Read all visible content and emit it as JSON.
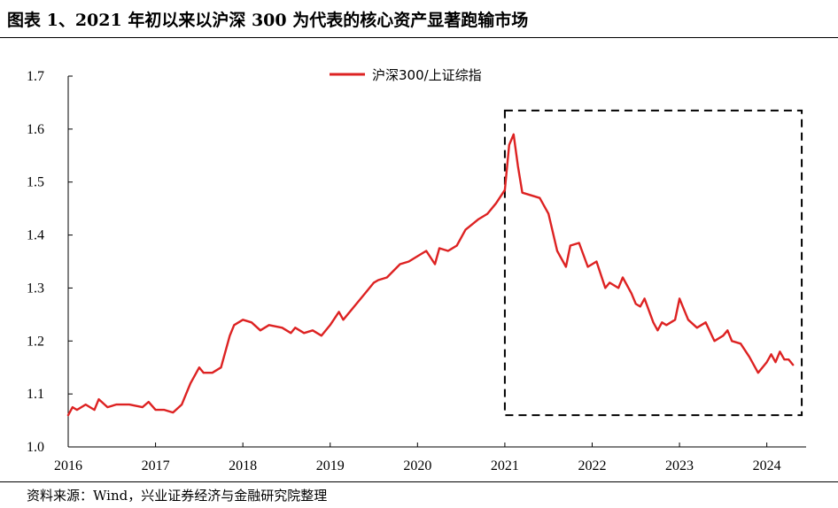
{
  "header": {
    "title": "图表 1、2021 年初以来以沪深 300 为代表的核心资产显著跑输市场"
  },
  "footer": {
    "source": "资料来源：Wind，兴业证券经济与金融研究院整理"
  },
  "colors": {
    "series": "#dd2222",
    "axis": "#000000",
    "highlight_box": "#000000"
  },
  "chart_data": {
    "type": "line",
    "title": "",
    "xlabel": "",
    "ylabel": "",
    "xlim": [
      2016,
      2024.45
    ],
    "ylim": [
      1.0,
      1.7
    ],
    "yticks": [
      "1.0",
      "1.1",
      "1.2",
      "1.3",
      "1.4",
      "1.5",
      "1.6",
      "1.7"
    ],
    "xticks": [
      "2016",
      "2017",
      "2018",
      "2019",
      "2020",
      "2021",
      "2022",
      "2023",
      "2024"
    ],
    "grid": false,
    "legend": {
      "placement": "top-center",
      "entries": [
        "沪深300/上证综指"
      ]
    },
    "highlight_box": {
      "x_range": [
        2021.0,
        2024.4
      ],
      "y_range": [
        1.06,
        1.635
      ],
      "style": "dashed"
    },
    "series": [
      {
        "name": "沪深300/上证综指",
        "x": [
          2016.0,
          2016.05,
          2016.1,
          2016.2,
          2016.3,
          2016.35,
          2016.45,
          2016.55,
          2016.7,
          2016.85,
          2016.92,
          2017.0,
          2017.1,
          2017.2,
          2017.3,
          2017.35,
          2017.4,
          2017.5,
          2017.55,
          2017.65,
          2017.75,
          2017.85,
          2017.9,
          2018.0,
          2018.1,
          2018.2,
          2018.3,
          2018.45,
          2018.55,
          2018.6,
          2018.7,
          2018.8,
          2018.9,
          2019.0,
          2019.1,
          2019.15,
          2019.3,
          2019.4,
          2019.5,
          2019.55,
          2019.65,
          2019.8,
          2019.9,
          2020.0,
          2020.1,
          2020.2,
          2020.25,
          2020.35,
          2020.45,
          2020.55,
          2020.7,
          2020.8,
          2020.9,
          2021.0,
          2021.05,
          2021.1,
          2021.15,
          2021.2,
          2021.3,
          2021.4,
          2021.5,
          2021.6,
          2021.7,
          2021.75,
          2021.85,
          2021.95,
          2022.05,
          2022.15,
          2022.2,
          2022.3,
          2022.35,
          2022.45,
          2022.5,
          2022.55,
          2022.6,
          2022.7,
          2022.75,
          2022.8,
          2022.85,
          2022.95,
          2023.0,
          2023.05,
          2023.1,
          2023.2,
          2023.3,
          2023.4,
          2023.5,
          2023.55,
          2023.6,
          2023.7,
          2023.8,
          2023.9,
          2023.95,
          2024.0,
          2024.05,
          2024.1,
          2024.15,
          2024.2,
          2024.25,
          2024.3
        ],
        "values": [
          1.06,
          1.075,
          1.07,
          1.08,
          1.07,
          1.09,
          1.075,
          1.08,
          1.08,
          1.075,
          1.085,
          1.07,
          1.07,
          1.065,
          1.08,
          1.1,
          1.12,
          1.15,
          1.14,
          1.14,
          1.15,
          1.21,
          1.23,
          1.24,
          1.235,
          1.22,
          1.23,
          1.225,
          1.215,
          1.225,
          1.215,
          1.22,
          1.21,
          1.23,
          1.255,
          1.24,
          1.27,
          1.29,
          1.31,
          1.315,
          1.32,
          1.345,
          1.35,
          1.36,
          1.37,
          1.345,
          1.375,
          1.37,
          1.38,
          1.41,
          1.43,
          1.44,
          1.46,
          1.485,
          1.57,
          1.59,
          1.53,
          1.48,
          1.475,
          1.47,
          1.44,
          1.37,
          1.34,
          1.38,
          1.385,
          1.34,
          1.35,
          1.3,
          1.31,
          1.3,
          1.32,
          1.29,
          1.27,
          1.265,
          1.28,
          1.235,
          1.22,
          1.235,
          1.23,
          1.24,
          1.28,
          1.26,
          1.24,
          1.225,
          1.235,
          1.2,
          1.21,
          1.22,
          1.2,
          1.195,
          1.17,
          1.14,
          1.15,
          1.16,
          1.175,
          1.16,
          1.18,
          1.165,
          1.165,
          1.155
        ]
      }
    ]
  }
}
